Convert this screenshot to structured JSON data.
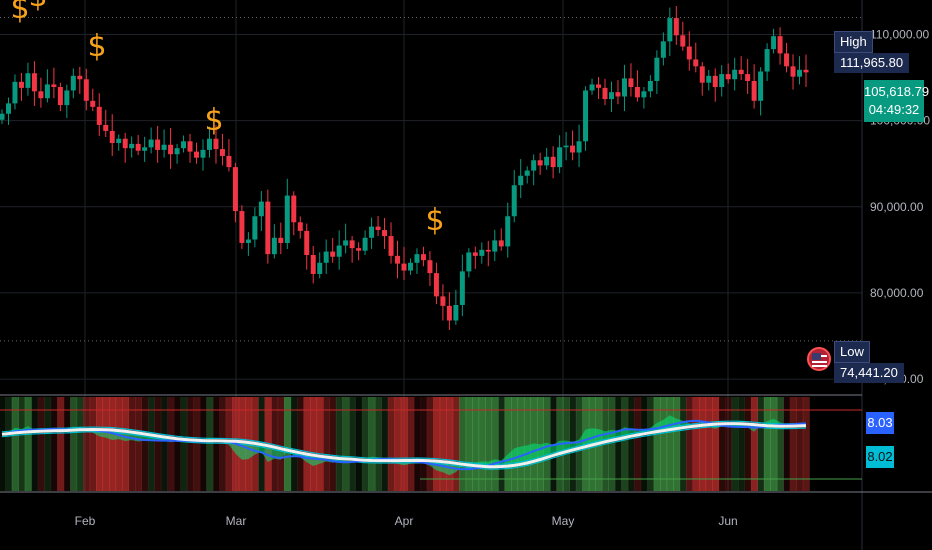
{
  "chart_data": [
    {
      "type": "candlestick",
      "title": "",
      "y_ticks": [
        "110,000.00",
        "100,000.00",
        "90,000.00",
        "80,000.00",
        "70,000.00"
      ],
      "y_tick_values": [
        110000,
        100000,
        90000,
        80000,
        70000
      ],
      "x_ticks": [
        "Feb",
        "Mar",
        "Apr",
        "May",
        "Jun"
      ],
      "ylim": [
        68500,
        114000
      ],
      "high": {
        "label": "High",
        "value": "111,965.80"
      },
      "low": {
        "label": "Low",
        "value": "74,441.20"
      },
      "last_price": "105,618.79",
      "countdown": "04:49:32",
      "markers": {
        "symbol": "$",
        "count": 5
      },
      "approx_closes": [
        100800,
        102000,
        104500,
        103800,
        105500,
        103400,
        102600,
        104200,
        103900,
        101800,
        103500,
        105200,
        104800,
        102300,
        101600,
        99500,
        98800,
        97400,
        97900,
        96800,
        97300,
        96500,
        96900,
        97800,
        96600,
        97200,
        96100,
        96800,
        97600,
        96400,
        95700,
        96600,
        97900,
        96700,
        95900,
        94600,
        89500,
        85800,
        86200,
        88900,
        90600,
        84500,
        86400,
        85800,
        91300,
        88200,
        87200,
        84400,
        82200,
        83500,
        84800,
        84200,
        85500,
        86100,
        85200,
        84900,
        86400,
        87700,
        87300,
        86600,
        84300,
        83400,
        82600,
        83500,
        84500,
        83800,
        82300,
        79600,
        78500,
        76800,
        78600,
        82500,
        84700,
        84300,
        85000,
        84800,
        86100,
        85400,
        88900,
        92500,
        93600,
        94200,
        95400,
        94800,
        95800,
        94600,
        96900,
        97100,
        96300,
        97600,
        103500,
        104200,
        103800,
        102500,
        103300,
        102800,
        104900,
        103900,
        102700,
        103400,
        104600,
        107300,
        109200,
        111900,
        109900,
        108600,
        107100,
        106300,
        104400,
        105200,
        103900,
        105400,
        104800,
        105900,
        105400,
        104600,
        102300,
        105700,
        108300,
        109800,
        107800,
        106300,
        105100,
        105900,
        105600
      ]
    },
    {
      "type": "line",
      "title": "",
      "values_shown": [
        "8.03",
        "8.02"
      ],
      "series_colors": [
        "#f0f0f0",
        "#2962ff",
        "#00bcd4",
        "#00e676",
        "#ff1744"
      ]
    }
  ],
  "colors": {
    "up": "#089981",
    "down": "#f23645",
    "marker": "#f7a21b",
    "bg": "#000000"
  }
}
